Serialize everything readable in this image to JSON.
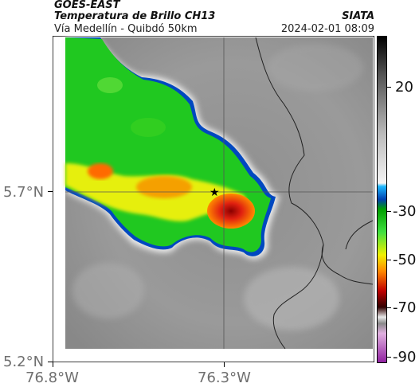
{
  "header": {
    "satellite": "GOES-EAST",
    "product": "Temperatura de Brillo CH13",
    "location": "Vía Medellín - Quibdó 50km",
    "agency": "SIATA",
    "datetime": "2024-02-01 08:09"
  },
  "map": {
    "lat_ticks": [
      "5.7°N",
      "5.2°N"
    ],
    "lon_ticks": [
      "76.8°W",
      "76.3°W"
    ],
    "marker": "star-marker"
  },
  "colorbar": {
    "labels": [
      "20",
      "-30",
      "-50",
      "-70",
      "-90"
    ]
  },
  "colors": {
    "accent": "#000000",
    "cloud_green": "#22cc22",
    "cloud_yellow": "#f5f500",
    "cloud_red": "#e53010",
    "edge_blue": "#0050c8"
  }
}
